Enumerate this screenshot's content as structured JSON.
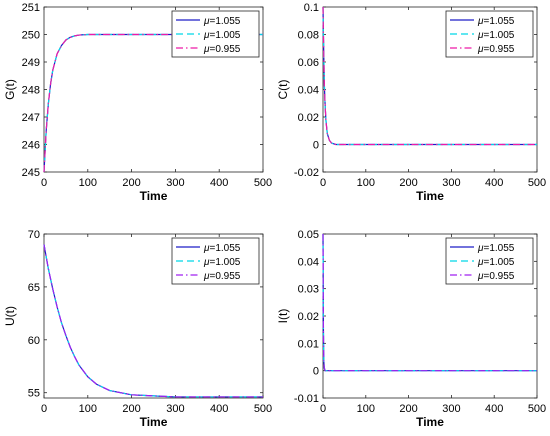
{
  "legend_mu_symbol": "μ",
  "chart_data": [
    {
      "type": "line",
      "ylabel": "G(t)",
      "xlabel": "Time",
      "xlim": [
        0,
        500
      ],
      "ylim": [
        245,
        251
      ],
      "xticks": [
        0,
        100,
        200,
        300,
        400,
        500
      ],
      "xtick_labels": [
        "0",
        "100",
        "200",
        "300",
        "400",
        "500"
      ],
      "yticks": [
        245,
        246,
        247,
        248,
        249,
        250,
        251
      ],
      "ytick_labels": [
        "245",
        "246",
        "247",
        "248",
        "249",
        "250",
        "251"
      ],
      "legend_position": "top-right",
      "grid": false,
      "series": [
        {
          "name": "=1.055",
          "color": "#1f1fc8",
          "dash": "solid",
          "x": [
            0,
            5,
            10,
            15,
            20,
            30,
            40,
            50,
            60,
            70,
            80,
            90,
            100,
            120,
            150,
            200,
            300,
            400,
            500
          ],
          "y": [
            245.0,
            246.5,
            247.5,
            248.2,
            248.7,
            249.3,
            249.6,
            249.8,
            249.9,
            249.95,
            249.98,
            249.99,
            250.0,
            250.0,
            250.0,
            250.0,
            250.0,
            250.0,
            250.0
          ]
        },
        {
          "name": "=1.005",
          "color": "#00d8e8",
          "dash": "dashed",
          "x": [
            0,
            5,
            10,
            15,
            20,
            30,
            40,
            50,
            60,
            70,
            80,
            90,
            100,
            120,
            150,
            200,
            300,
            400,
            500
          ],
          "y": [
            245.0,
            246.5,
            247.5,
            248.2,
            248.7,
            249.3,
            249.6,
            249.8,
            249.9,
            249.95,
            249.98,
            249.99,
            250.0,
            250.0,
            250.0,
            250.0,
            250.0,
            250.0,
            250.0
          ]
        },
        {
          "name": "=0.955",
          "color": "#ee1aa8",
          "dash": "dashdot",
          "x": [
            0,
            5,
            10,
            15,
            20,
            30,
            40,
            50,
            60,
            70,
            80,
            90,
            100,
            120,
            150,
            200,
            300,
            400,
            500
          ],
          "y": [
            245.0,
            246.5,
            247.5,
            248.2,
            248.7,
            249.3,
            249.6,
            249.8,
            249.9,
            249.95,
            249.98,
            249.99,
            250.0,
            250.0,
            250.0,
            250.0,
            250.0,
            250.0,
            250.0
          ]
        }
      ]
    },
    {
      "type": "line",
      "ylabel": "C(t)",
      "xlabel": "Time",
      "xlim": [
        0,
        500
      ],
      "ylim": [
        -0.02,
        0.1
      ],
      "xticks": [
        0,
        100,
        200,
        300,
        400,
        500
      ],
      "xtick_labels": [
        "0",
        "100",
        "200",
        "300",
        "400",
        "500"
      ],
      "yticks": [
        -0.02,
        0,
        0.02,
        0.04,
        0.06,
        0.08,
        0.1
      ],
      "ytick_labels": [
        "-0.02",
        "0",
        "0.02",
        "0.04",
        "0.06",
        "0.08",
        "0.1"
      ],
      "legend_position": "top-right",
      "grid": false,
      "series": [
        {
          "name": "=1.055",
          "color": "#1f1fc8",
          "dash": "solid",
          "x": [
            0,
            1,
            2,
            3,
            5,
            7,
            10,
            15,
            20,
            30,
            50,
            100,
            200,
            300,
            400,
            500
          ],
          "y": [
            0.1,
            0.08,
            0.062,
            0.045,
            0.028,
            0.017,
            0.008,
            0.003,
            0.001,
            0.0,
            0.0,
            0.0,
            0.0,
            0.0,
            0.0,
            0.0
          ]
        },
        {
          "name": "=1.005",
          "color": "#00d8e8",
          "dash": "dashed",
          "x": [
            0,
            1,
            2,
            3,
            5,
            7,
            10,
            15,
            20,
            30,
            50,
            100,
            200,
            300,
            400,
            500
          ],
          "y": [
            0.1,
            0.08,
            0.062,
            0.045,
            0.028,
            0.017,
            0.008,
            0.003,
            0.001,
            0.0,
            0.0,
            0.0,
            0.0,
            0.0,
            0.0,
            0.0
          ]
        },
        {
          "name": "=0.955",
          "color": "#ee1aa8",
          "dash": "dashdot",
          "x": [
            0,
            1,
            2,
            3,
            5,
            7,
            10,
            15,
            20,
            30,
            50,
            100,
            200,
            300,
            400,
            500
          ],
          "y": [
            0.1,
            0.08,
            0.062,
            0.045,
            0.028,
            0.017,
            0.008,
            0.003,
            0.001,
            0.0,
            0.0,
            0.0,
            0.0,
            0.0,
            0.0,
            0.0
          ]
        }
      ]
    },
    {
      "type": "line",
      "ylabel": "U(t)",
      "xlabel": "Time",
      "xlim": [
        0,
        500
      ],
      "ylim": [
        54.5,
        70
      ],
      "xticks": [
        0,
        100,
        200,
        300,
        400,
        500
      ],
      "xtick_labels": [
        "0",
        "100",
        "200",
        "300",
        "400",
        "500"
      ],
      "yticks": [
        55,
        60,
        65,
        70
      ],
      "ytick_labels": [
        "55",
        "60",
        "65",
        "70"
      ],
      "legend_position": "top-right",
      "grid": false,
      "series": [
        {
          "name": "=1.055",
          "color": "#1f1fc8",
          "dash": "solid",
          "x": [
            0,
            10,
            20,
            30,
            40,
            50,
            60,
            70,
            80,
            100,
            120,
            150,
            200,
            250,
            300,
            400,
            500
          ],
          "y": [
            69.0,
            66.7,
            64.8,
            63.1,
            61.6,
            60.4,
            59.3,
            58.4,
            57.6,
            56.5,
            55.8,
            55.2,
            54.8,
            54.7,
            54.6,
            54.6,
            54.6
          ]
        },
        {
          "name": "=1.005",
          "color": "#00d8e8",
          "dash": "dashed",
          "x": [
            0,
            10,
            20,
            30,
            40,
            50,
            60,
            70,
            80,
            100,
            120,
            150,
            200,
            250,
            300,
            400,
            500
          ],
          "y": [
            69.0,
            66.7,
            64.8,
            63.1,
            61.6,
            60.4,
            59.3,
            58.4,
            57.6,
            56.5,
            55.8,
            55.2,
            54.8,
            54.7,
            54.6,
            54.6,
            54.6
          ]
        },
        {
          "name": "=0.955",
          "color": "#a020f0",
          "dash": "dashdot",
          "x": [
            0,
            10,
            20,
            30,
            40,
            50,
            60,
            70,
            80,
            100,
            120,
            150,
            200,
            250,
            300,
            400,
            500
          ],
          "y": [
            69.0,
            66.7,
            64.8,
            63.1,
            61.6,
            60.4,
            59.3,
            58.4,
            57.6,
            56.5,
            55.8,
            55.2,
            54.8,
            54.7,
            54.6,
            54.6,
            54.6
          ]
        }
      ]
    },
    {
      "type": "line",
      "ylabel": "I(t)",
      "xlabel": "Time",
      "xlim": [
        0,
        500
      ],
      "ylim": [
        -0.01,
        0.05
      ],
      "xticks": [
        0,
        100,
        200,
        300,
        400,
        500
      ],
      "xtick_labels": [
        "0",
        "100",
        "200",
        "300",
        "400",
        "500"
      ],
      "yticks": [
        -0.01,
        0,
        0.01,
        0.02,
        0.03,
        0.04,
        0.05
      ],
      "ytick_labels": [
        "-0.01",
        "0",
        "0.01",
        "0.02",
        "0.03",
        "0.04",
        "0.05"
      ],
      "legend_position": "top-right",
      "grid": false,
      "series": [
        {
          "name": "=1.055",
          "color": "#1f1fc8",
          "dash": "solid",
          "x": [
            0,
            0.5,
            1,
            1.5,
            2,
            3,
            5,
            10,
            50,
            100,
            200,
            300,
            400,
            500
          ],
          "y": [
            0.05,
            0.03,
            0.015,
            0.007,
            0.003,
            0.001,
            0.0,
            0.0,
            0.0,
            0.0,
            0.0,
            0.0,
            0.0,
            0.0
          ]
        },
        {
          "name": "=1.005",
          "color": "#00d8e8",
          "dash": "dashed",
          "x": [
            0,
            0.5,
            1,
            1.5,
            2,
            3,
            5,
            10,
            50,
            100,
            200,
            300,
            400,
            500
          ],
          "y": [
            0.05,
            0.03,
            0.015,
            0.007,
            0.003,
            0.001,
            0.0,
            0.0,
            0.0,
            0.0,
            0.0,
            0.0,
            0.0,
            0.0
          ]
        },
        {
          "name": "=0.955",
          "color": "#a020f0",
          "dash": "dashdot",
          "x": [
            0,
            0.5,
            1,
            1.5,
            2,
            3,
            5,
            10,
            50,
            100,
            200,
            300,
            400,
            500
          ],
          "y": [
            0.05,
            0.03,
            0.015,
            0.007,
            0.003,
            0.001,
            0.0,
            0.0,
            0.0,
            0.0,
            0.0,
            0.0,
            0.0,
            0.0
          ]
        }
      ]
    }
  ]
}
